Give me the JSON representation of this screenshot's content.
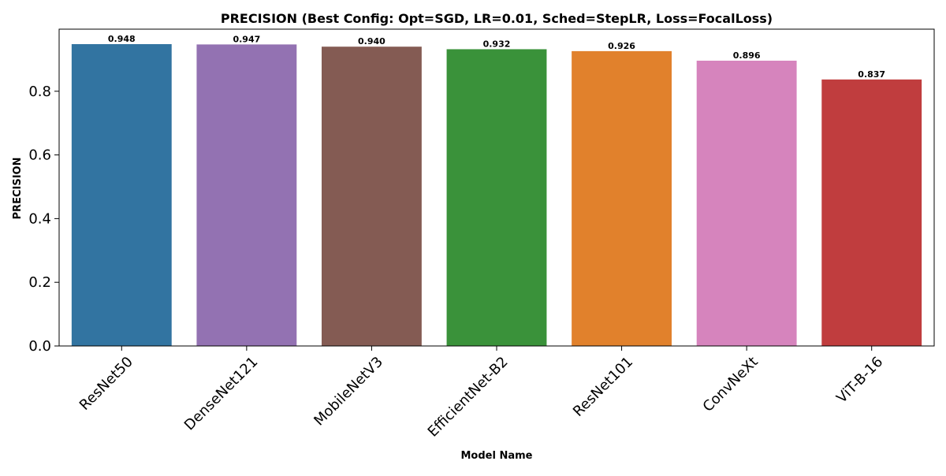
{
  "chart_data": {
    "type": "bar",
    "title": "PRECISION (Best Config: Opt=SGD, LR=0.01, Sched=StepLR, Loss=FocalLoss)",
    "xlabel": "Model Name",
    "ylabel": "PRECISION",
    "ylim": [
      0,
      0.995
    ],
    "yticks": [
      "0.0",
      "0.2",
      "0.4",
      "0.6",
      "0.8"
    ],
    "grid": false,
    "legend": "none",
    "categories": [
      "ResNet50",
      "DenseNet121",
      "MobileNetV3",
      "EfficientNet-B2",
      "ResNet101",
      "ConvNeXt",
      "ViT-B-16"
    ],
    "values": [
      0.948,
      0.947,
      0.94,
      0.932,
      0.926,
      0.896,
      0.837
    ],
    "value_labels": [
      "0.948",
      "0.947",
      "0.940",
      "0.932",
      "0.926",
      "0.896",
      "0.837"
    ],
    "colors": [
      "#3274a1",
      "#9372b2",
      "#845b53",
      "#3a923a",
      "#e1812c",
      "#d684bd",
      "#c03d3e"
    ]
  }
}
